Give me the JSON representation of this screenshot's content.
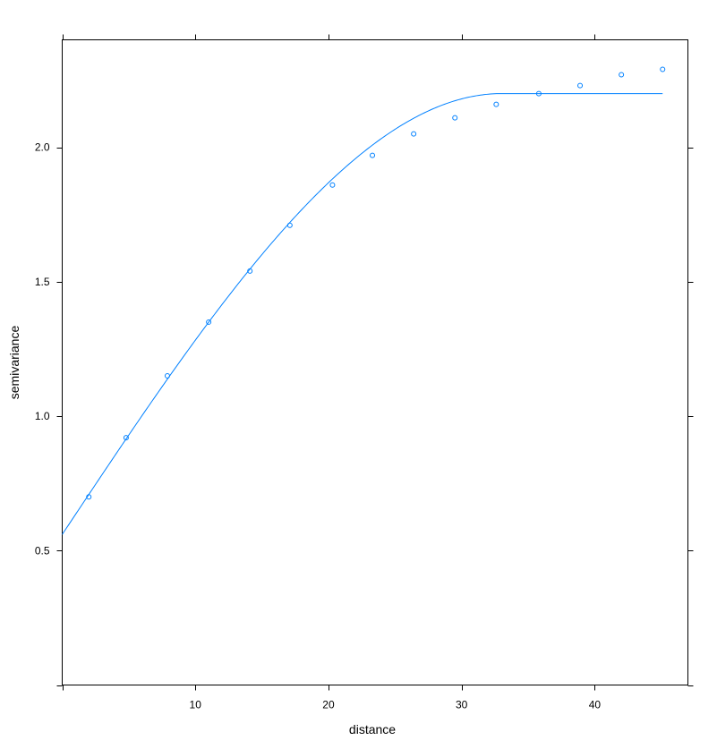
{
  "chart_data": {
    "type": "scatter",
    "title": "",
    "xlabel": "distance",
    "ylabel": "semivariance",
    "xlim": [
      0,
      47
    ],
    "ylim": [
      0,
      2.4
    ],
    "x_ticks": [
      10,
      20,
      30,
      40
    ],
    "y_ticks": [
      0.5,
      1.0,
      1.5,
      2.0
    ],
    "x_tick_labels": [
      "10",
      "20",
      "30",
      "40"
    ],
    "y_tick_labels": [
      "0.5",
      "1.0",
      "1.5",
      "2.0"
    ],
    "grid": false,
    "legend": "none",
    "color": "#0080ff",
    "series": [
      {
        "type": "scatter",
        "marker": "circle",
        "x": [
          2.0,
          4.8,
          7.9,
          11.0,
          14.1,
          17.1,
          20.3,
          23.3,
          26.4,
          29.5,
          32.6,
          35.8,
          38.9,
          42.0,
          45.1
        ],
        "y": [
          0.7,
          0.92,
          1.15,
          1.35,
          1.54,
          1.71,
          1.86,
          1.97,
          2.05,
          2.11,
          2.16,
          2.2,
          2.23,
          2.27,
          2.29
        ]
      },
      {
        "type": "line",
        "model": "spherical",
        "x_range": [
          0,
          45.1
        ],
        "nugget": 0.56,
        "partial_sill": 1.64,
        "range": 33.0
      }
    ]
  }
}
